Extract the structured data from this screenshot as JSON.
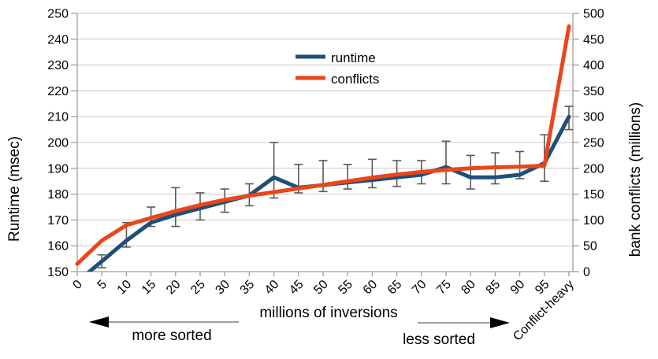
{
  "chart_data": {
    "type": "line",
    "title": "",
    "x_axis": {
      "label": "millions of inversions",
      "categories": [
        "0",
        "5",
        "10",
        "15",
        "20",
        "25",
        "30",
        "35",
        "40",
        "45",
        "50",
        "55",
        "60",
        "65",
        "70",
        "75",
        "80",
        "85",
        "90",
        "95",
        "Conflict-heavy"
      ]
    },
    "y_left": {
      "label": "Runtime (msec)",
      "min": 150,
      "max": 250,
      "step": 10,
      "ticks": [
        150,
        160,
        170,
        180,
        190,
        200,
        210,
        220,
        230,
        240,
        250
      ]
    },
    "y_right": {
      "label": "bank conflicts (millions)",
      "min": 0,
      "max": 500,
      "step": 50,
      "ticks": [
        0,
        50,
        100,
        150,
        200,
        250,
        300,
        350,
        400,
        450,
        500
      ]
    },
    "grid": true,
    "legend": {
      "position": "top-center"
    },
    "series": [
      {
        "name": "runtime",
        "axis": "left",
        "color": "#1f4e79",
        "values": [
          146,
          154,
          162,
          169,
          172,
          174.5,
          177,
          179.5,
          186.5,
          182.5,
          183.5,
          184.5,
          185.5,
          186.5,
          187.5,
          190.5,
          186.5,
          186.5,
          187.5,
          192,
          210
        ],
        "error_low": [
          null,
          151.5,
          159.5,
          167.5,
          167.5,
          170,
          173,
          175.5,
          178.5,
          180.5,
          181,
          182,
          182.5,
          183,
          184,
          184,
          182,
          184,
          186,
          185,
          205
        ],
        "error_high": [
          null,
          156.5,
          169,
          175,
          182.5,
          180.5,
          182,
          184,
          200,
          191.5,
          193,
          191.5,
          193.5,
          193,
          193,
          200.5,
          195,
          196,
          196.5,
          203,
          214
        ]
      },
      {
        "name": "conflicts",
        "axis": "right",
        "color": "#eb4619",
        "values": [
          15,
          60,
          90,
          104,
          117,
          129,
          139,
          147,
          154,
          161,
          168,
          175,
          182,
          188,
          193,
          197,
          200,
          202,
          203,
          205,
          475
        ]
      }
    ],
    "annotations": {
      "more_sorted": "more sorted",
      "less_sorted": "less sorted"
    }
  },
  "colors": {
    "runtime_line": "#1f4e79",
    "conflicts_line": "#eb4619",
    "error_bar": "#595959",
    "gridline": "#c9c9c9",
    "axis_line": "#9e9e9e",
    "arrow_line": "#7f7f7f",
    "arrow_head": "#000000",
    "text": "#000000"
  }
}
